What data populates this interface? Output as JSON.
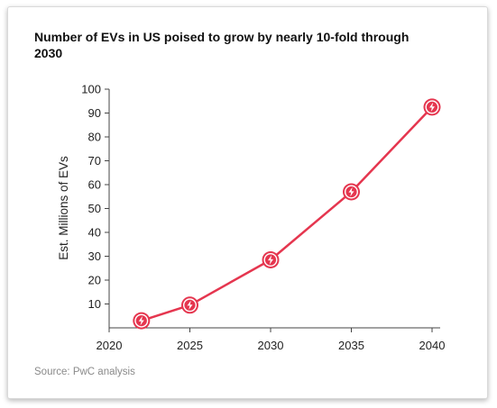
{
  "chart_data": {
    "type": "line",
    "title": "Number of EVs in US poised to grow by nearly 10-fold through 2030",
    "xlabel": "",
    "ylabel": "Est. Millions of EVs",
    "x": [
      2022,
      2025,
      2030,
      2035,
      2040
    ],
    "series": [
      {
        "values": [
          3,
          9.5,
          28.5,
          57,
          92.5
        ]
      }
    ],
    "xlim": [
      2020,
      2040
    ],
    "ylim": [
      0,
      100
    ],
    "x_ticks": [
      "2020",
      "2025",
      "2030",
      "2035",
      "2040"
    ],
    "y_ticks": [
      "10",
      "20",
      "30",
      "40",
      "50",
      "60",
      "70",
      "80",
      "90",
      "100"
    ],
    "grid": false,
    "marker_icon": "lightning-bolt-icon",
    "line_color": "#e5364f",
    "source": "Source: PwC analysis"
  }
}
